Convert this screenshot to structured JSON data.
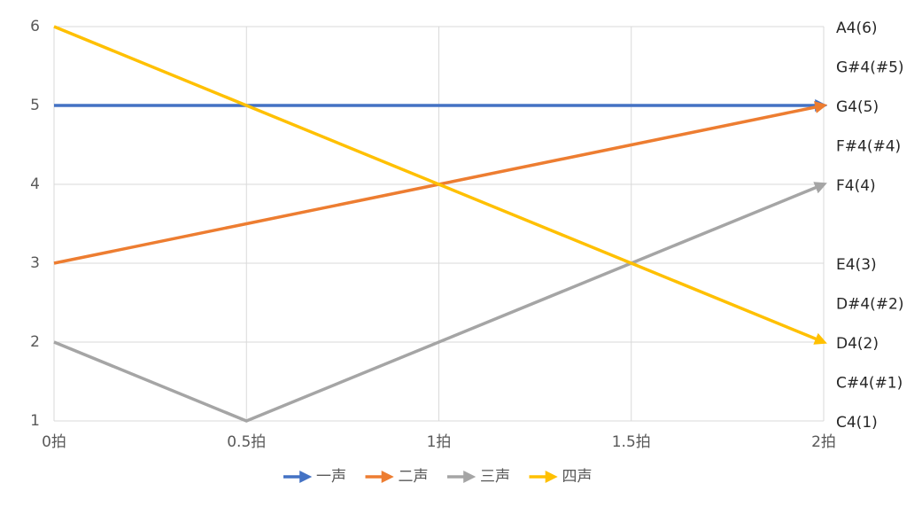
{
  "chart_data": {
    "type": "line",
    "categories": [
      "0拍",
      "0.5拍",
      "1拍",
      "1.5拍",
      "2拍"
    ],
    "series": [
      {
        "name": "一声",
        "color": "#4472c4",
        "values": [
          5,
          5,
          5,
          5,
          5
        ]
      },
      {
        "name": "二声",
        "color": "#ed7d31",
        "values": [
          3,
          3.5,
          4,
          4.5,
          5
        ]
      },
      {
        "name": "三声",
        "color": "#a5a5a5",
        "values": [
          2,
          1,
          2,
          3,
          4
        ]
      },
      {
        "name": "四声",
        "color": "#ffc000",
        "values": [
          6,
          5,
          4,
          3,
          2
        ]
      }
    ],
    "ylim": [
      1,
      6
    ],
    "yticks": [
      1,
      2,
      3,
      4,
      5,
      6
    ],
    "y2lim": [
      1,
      6
    ],
    "y2ticks": [
      {
        "value": 6,
        "label": "A4(6)"
      },
      {
        "value": 5.5,
        "label": "G#4(#5)"
      },
      {
        "value": 5,
        "label": "G4(5)"
      },
      {
        "value": 4.5,
        "label": "F#4(#4)"
      },
      {
        "value": 4,
        "label": "F4(4)"
      },
      {
        "value": 3,
        "label": "E4(3)"
      },
      {
        "value": 2.5,
        "label": "D#4(#2)"
      },
      {
        "value": 2,
        "label": "D4(2)"
      },
      {
        "value": 1.5,
        "label": "C#4(#1)"
      },
      {
        "value": 1,
        "label": "C4(1)"
      }
    ],
    "grid": true,
    "line_end": "arrow",
    "legend": "bottom"
  }
}
